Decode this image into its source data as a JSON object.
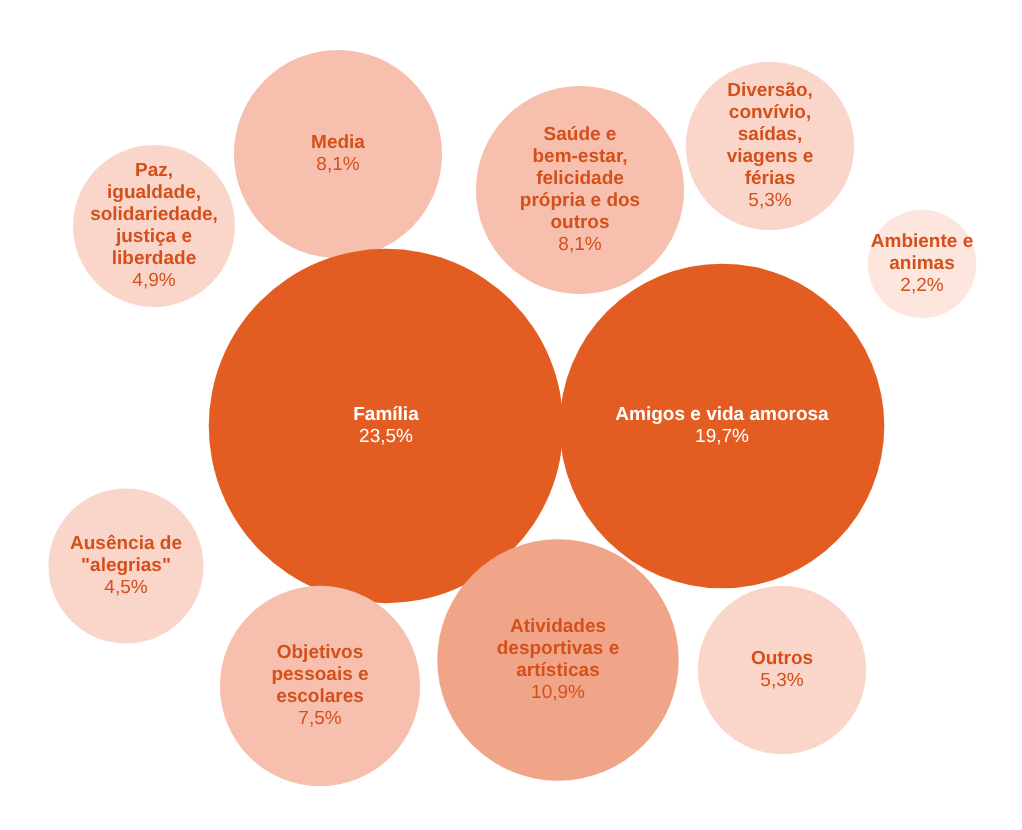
{
  "chart_data": {
    "type": "other",
    "categories": [
      "Media",
      "Saúde e bem-estar, felicidade própria e dos outros",
      "Diversão, convívio, saídas, viagens e férias",
      "Ambiente e animas",
      "Paz, igualdade, solidariedade, justiça e liberdade",
      "Família",
      "Amigos e vida amorosa",
      "Ausência de \"alegrias\"",
      "Objetivos pessoais e escolares",
      "Atividades desportivas e artísticas",
      "Outros"
    ],
    "values": [
      8.1,
      8.1,
      5.3,
      2.2,
      4.9,
      23.5,
      19.7,
      4.5,
      7.5,
      10.9,
      5.3
    ],
    "value_labels": [
      "8,1%",
      "8,1%",
      "5,3%",
      "2,2%",
      "4,9%",
      "23,5%",
      "19,7%",
      "4,5%",
      "7,5%",
      "10,9%",
      "5,3%"
    ],
    "colors": [
      "#f6bfae",
      "#f6bfae",
      "#fad5c9",
      "#fde6de",
      "#fad5c9",
      "#e35d22",
      "#e35d22",
      "#fad5c9",
      "#f6bfae",
      "#f0a589",
      "#fad5c9"
    ]
  }
}
